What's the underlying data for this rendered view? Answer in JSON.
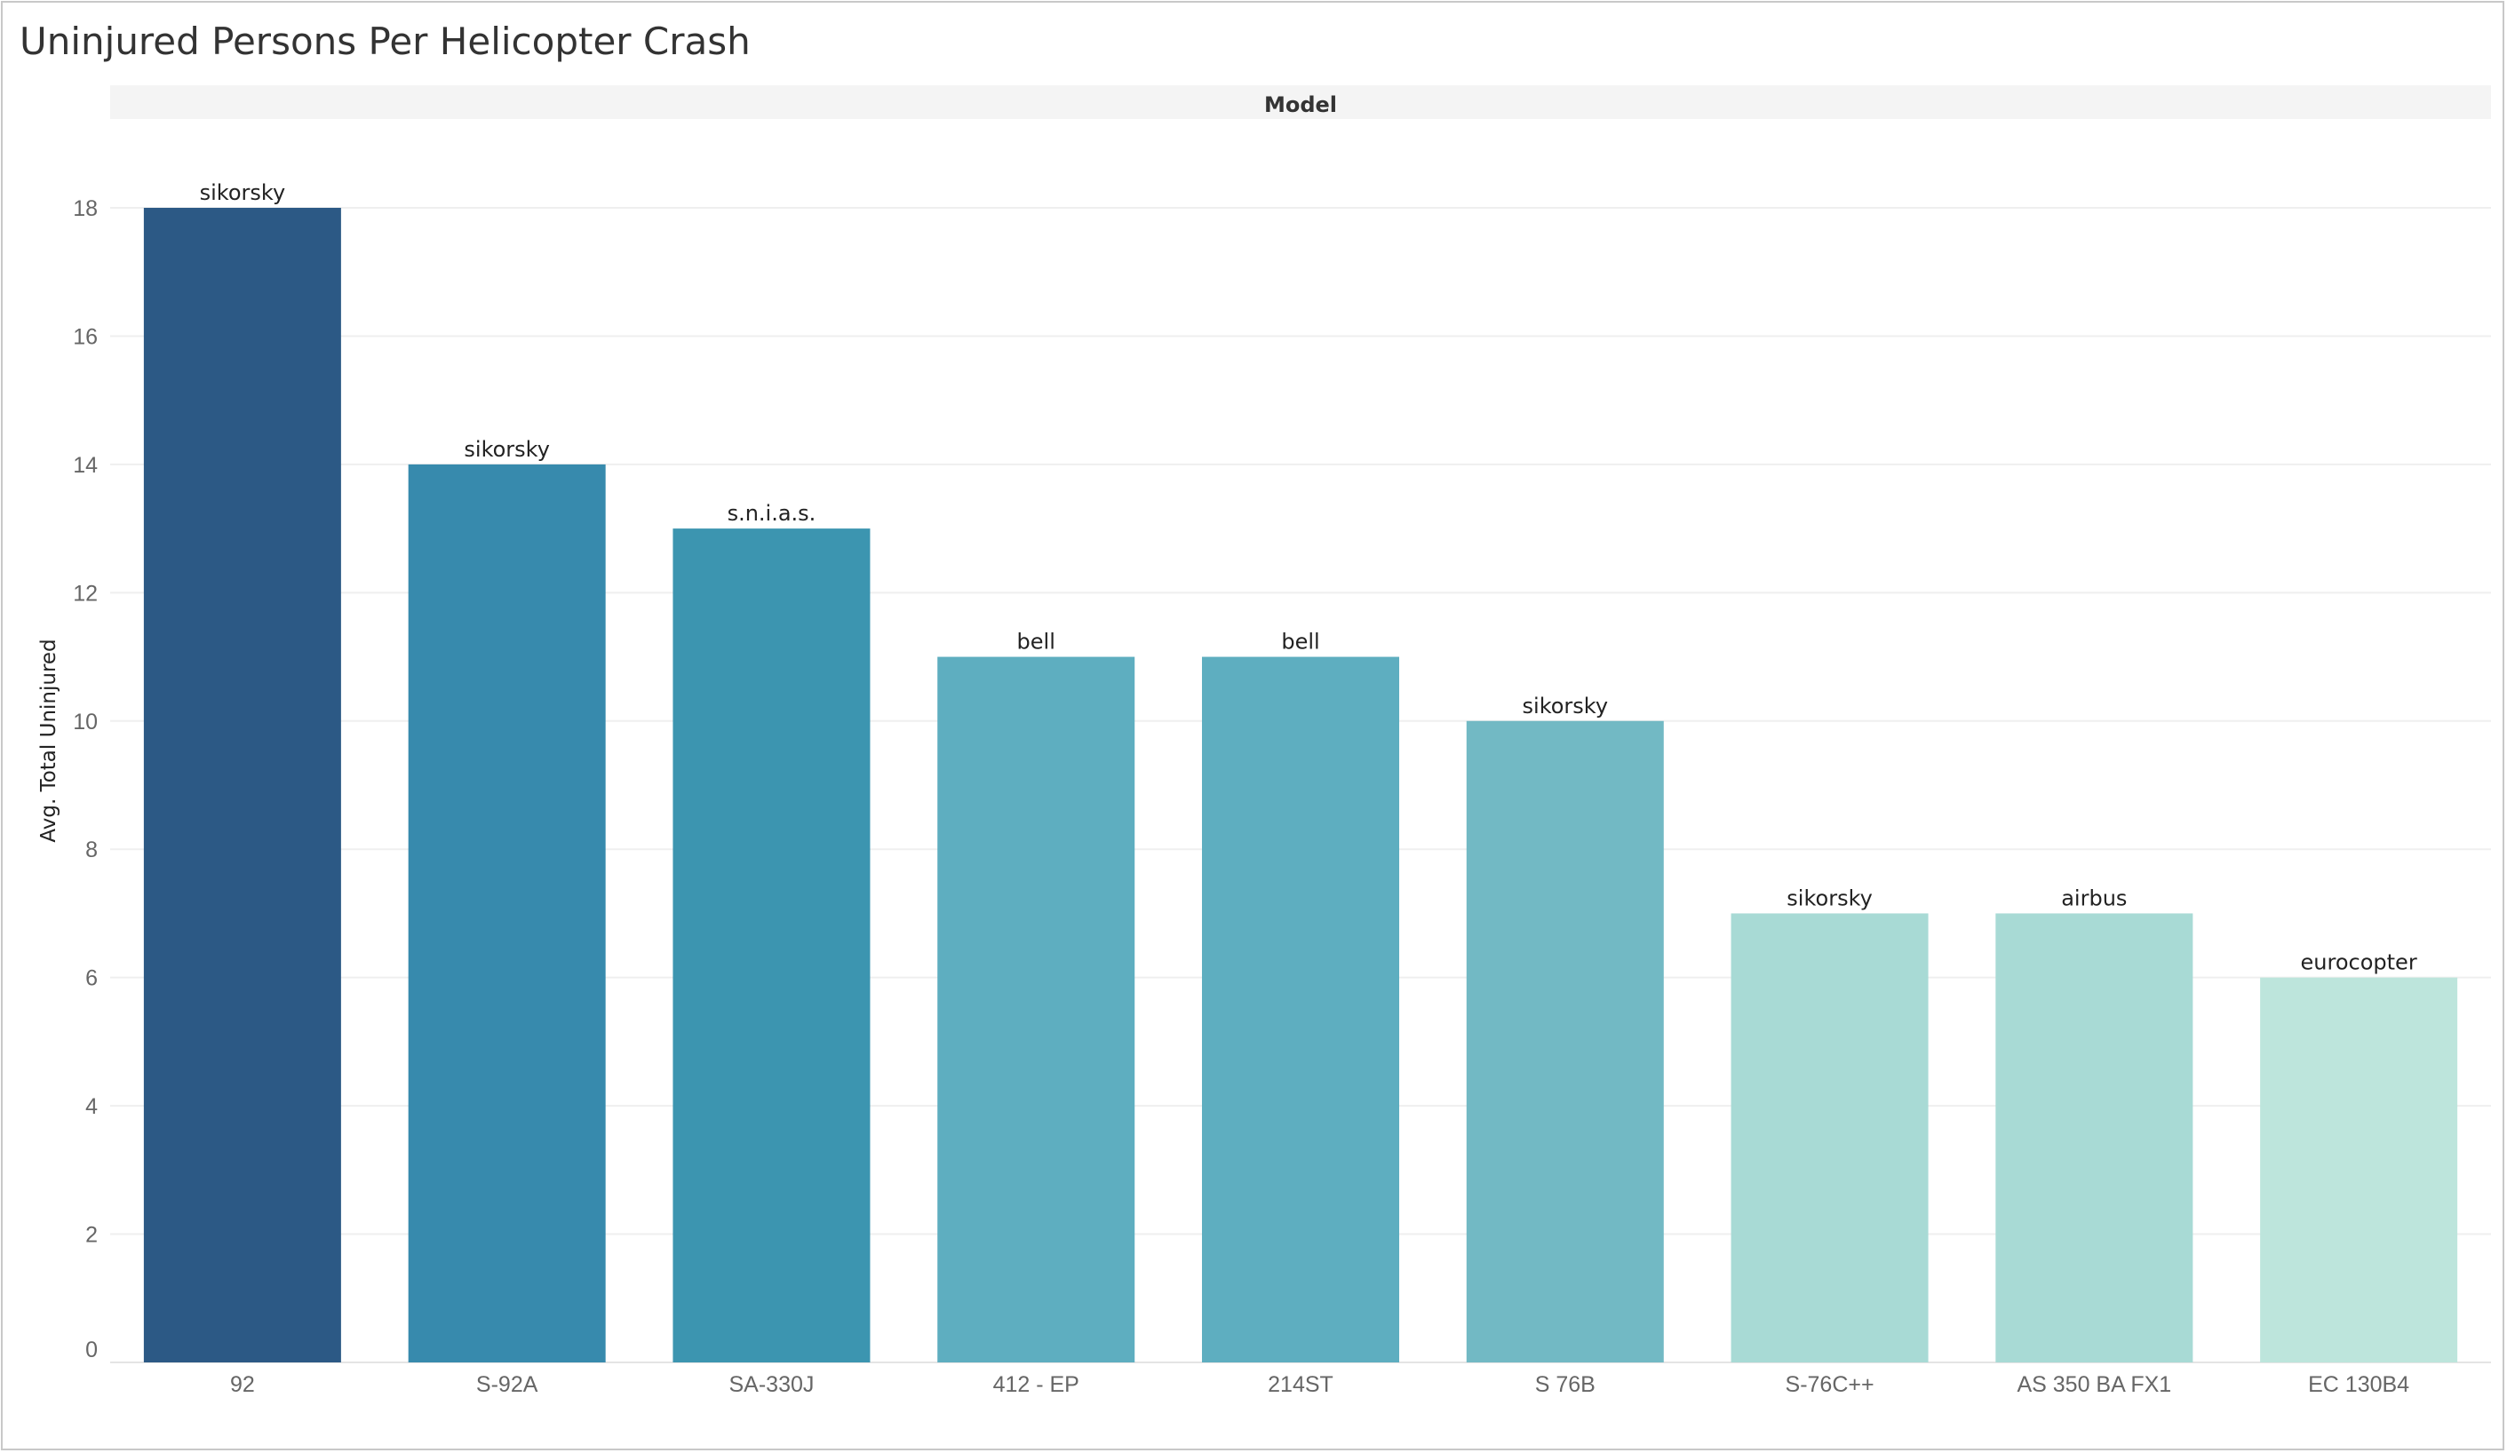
{
  "chart_data": {
    "type": "bar",
    "title": "Uninjured Persons Per Helicopter Crash",
    "header_label": "Model",
    "ylabel": "Avg. Total Uninjured",
    "xlabel": "",
    "ylim": [
      0,
      18
    ],
    "yticks": [
      0,
      2,
      4,
      6,
      8,
      10,
      12,
      14,
      16,
      18
    ],
    "grid": true,
    "categories": [
      "92",
      "S-92A",
      "SA-330J",
      "412 - EP",
      "214ST",
      "S 76B",
      "S-76C++",
      "AS 350 BA FX1",
      "EC 130B4"
    ],
    "values": [
      18,
      14,
      13,
      11,
      11,
      10,
      7,
      7,
      6
    ],
    "data_labels": [
      "sikorsky",
      "sikorsky",
      "s.n.i.a.s.",
      "bell",
      "bell",
      "sikorsky",
      "sikorsky",
      "airbus",
      "eurocopter"
    ],
    "colors": [
      "#2c5985",
      "#378aad",
      "#3c95b0",
      "#5eaec0",
      "#5eaec0",
      "#72b9c4",
      "#a8dad5",
      "#a8dad5",
      "#bde5dc"
    ]
  }
}
